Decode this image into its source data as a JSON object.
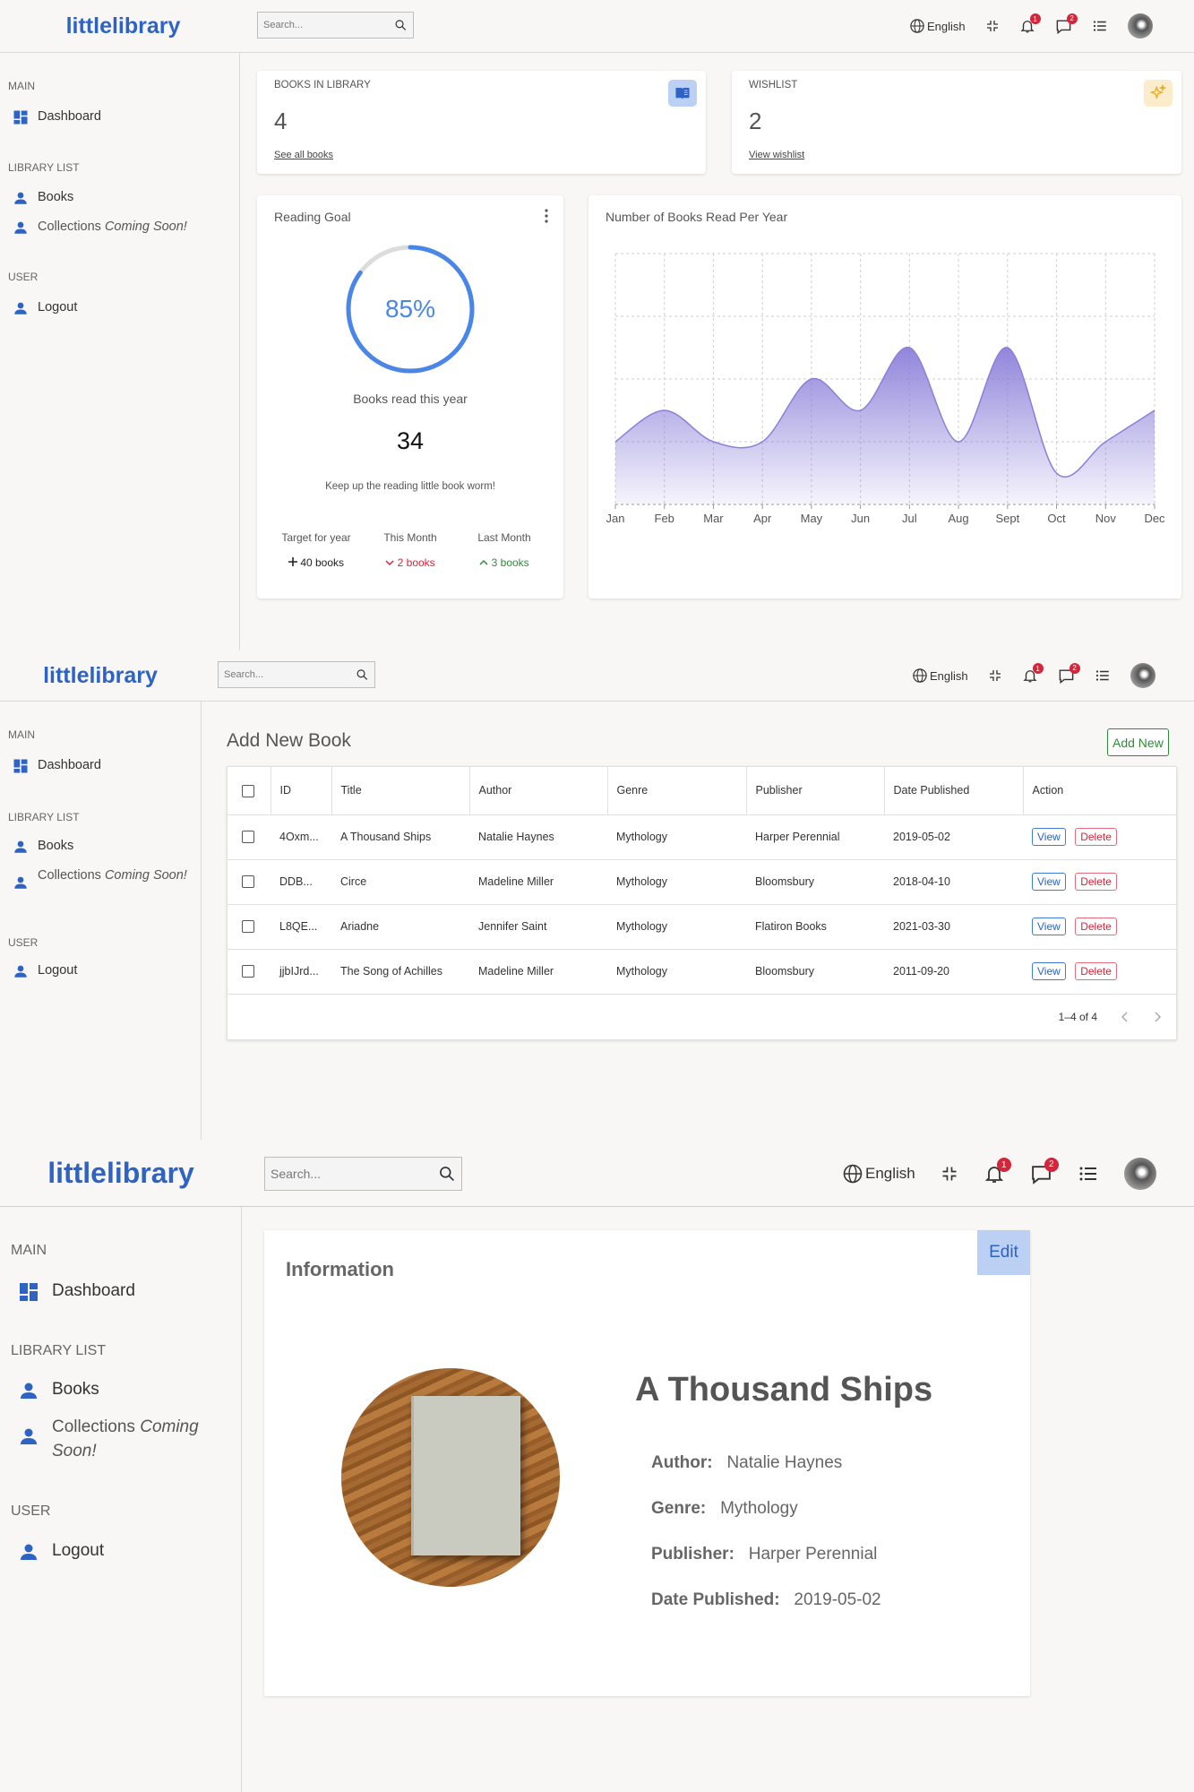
{
  "app": {
    "logo": "littlelibrary",
    "search_placeholder": "Search...",
    "language": "English",
    "notifications_count": "1",
    "messages_count": "2"
  },
  "sidebar": {
    "main_label": "MAIN",
    "dashboard": "Dashboard",
    "library_label": "LIBRARY LIST",
    "books": "Books",
    "collections": "Collections",
    "coming_soon": "Coming Soon!",
    "user_label": "USER",
    "logout": "Logout"
  },
  "dashboard": {
    "books_in_library": {
      "label": "BOOKS IN LIBRARY",
      "value": "4",
      "link": "See all books"
    },
    "wishlist": {
      "label": "WISHLIST",
      "value": "2",
      "link": "View wishlist"
    },
    "reading_goal": {
      "title": "Reading Goal",
      "percent_text": "85%",
      "percent_value": 0.85,
      "caption": "Books read this year",
      "count": "34",
      "message": "Keep up the reading little book worm!",
      "stats": [
        {
          "label": "Target for year",
          "value": "40 books",
          "trend": "plus",
          "color": "#222222"
        },
        {
          "label": "This Month",
          "value": "2 books",
          "trend": "down",
          "color": "#d4253b"
        },
        {
          "label": "Last Month",
          "value": "3 books",
          "trend": "up",
          "color": "#2e8b3a"
        }
      ]
    },
    "chart_title": "Number of Books Read Per Year",
    "chart_data": {
      "type": "area",
      "title": "Number of Books Read Per Year",
      "categories": [
        "Jan",
        "Feb",
        "Mar",
        "Apr",
        "May",
        "Jun",
        "Jul",
        "Aug",
        "Sept",
        "Oct",
        "Nov",
        "Dec"
      ],
      "values": [
        1,
        1.5,
        1,
        1,
        2,
        1.5,
        2.5,
        1,
        2.5,
        0.5,
        1,
        1.5
      ],
      "ylim": [
        0,
        4
      ],
      "grid": true,
      "color": "#8b7fd9"
    }
  },
  "books_page": {
    "title": "Add New Book",
    "add_button": "Add New",
    "columns": [
      "ID",
      "Title",
      "Author",
      "Genre",
      "Publisher",
      "Date Published",
      "Action"
    ],
    "rows": [
      {
        "id": "4Oxm...",
        "title": "A Thousand Ships",
        "author": "Natalie Haynes",
        "genre": "Mythology",
        "publisher": "Harper Perennial",
        "date": "2019-05-02"
      },
      {
        "id": "DDB...",
        "title": "Circe",
        "author": "Madeline Miller",
        "genre": "Mythology",
        "publisher": "Bloomsbury",
        "date": "2018-04-10"
      },
      {
        "id": "L8QE...",
        "title": "Ariadne",
        "author": "Jennifer Saint",
        "genre": "Mythology",
        "publisher": "Flatiron Books",
        "date": "2021-03-30"
      },
      {
        "id": "jjbIJrd...",
        "title": "The Song of Achilles",
        "author": "Madeline Miller",
        "genre": "Mythology",
        "publisher": "Bloomsbury",
        "date": "2011-09-20"
      }
    ],
    "view_label": "View",
    "delete_label": "Delete",
    "pagination": "1–4 of 4"
  },
  "detail": {
    "section_title": "Information",
    "edit_button": "Edit",
    "book_title": "A Thousand Ships",
    "fields": [
      {
        "label": "Author:",
        "value": "Natalie Haynes"
      },
      {
        "label": "Genre:",
        "value": "Mythology"
      },
      {
        "label": "Publisher:",
        "value": "Harper Perennial"
      },
      {
        "label": "Date Published:",
        "value": "2019-05-02"
      }
    ]
  },
  "colors": {
    "brand": "#2e63c4",
    "danger": "#d4253b",
    "success": "#2e8b3a",
    "chart": "#8b7fd9"
  }
}
